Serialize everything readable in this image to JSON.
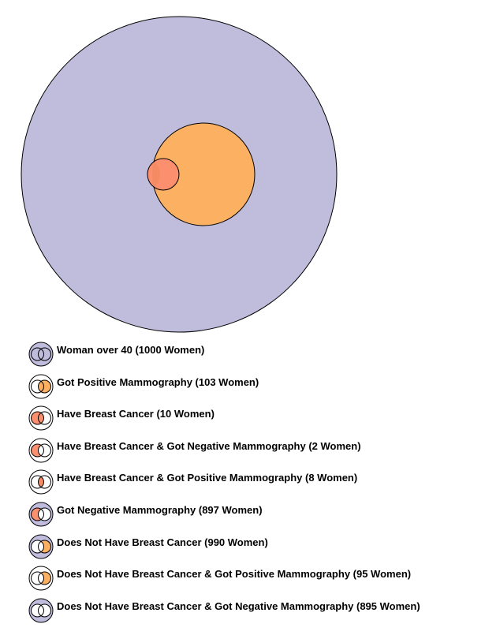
{
  "colors": {
    "women": "#bfbcdc",
    "positive": "#fcb162",
    "cancer": "#fb8f6e",
    "overlap_on_positive": "#f48b63",
    "stroke": "#000000"
  },
  "chart_data": {
    "type": "venn",
    "sets": [
      {
        "name": "Woman over 40",
        "count": 1000
      },
      {
        "name": "Got Positive Mammography",
        "count": 103
      },
      {
        "name": "Have Breast Cancer",
        "count": 10
      }
    ],
    "intersections": [
      {
        "sets": [
          "Have Breast Cancer",
          "Got Positive Mammography"
        ],
        "count": 8
      }
    ]
  },
  "legend": [
    {
      "label": "Woman over 40 (1000 Women)",
      "icon": "all-women",
      "fill": [
        "outer",
        "left",
        "right"
      ]
    },
    {
      "label": "Got Positive Mammography (103 Women)",
      "icon": "positive",
      "fill": [
        "right"
      ]
    },
    {
      "label": "Have Breast Cancer (10 Women)",
      "icon": "cancer",
      "fill": [
        "left"
      ]
    },
    {
      "label": "Have Breast Cancer & Got Negative Mammography (2 Women)",
      "icon": "cancer-negative",
      "fill": [
        "left-only"
      ]
    },
    {
      "label": "Have Breast Cancer & Got Positive Mammography (8 Women)",
      "icon": "cancer-positive",
      "fill": [
        "middle"
      ]
    },
    {
      "label": "Got Negative Mammography (897 Women)",
      "icon": "negative",
      "fill": [
        "outer",
        "left-only"
      ]
    },
    {
      "label": "Does Not Have Breast Cancer (990 Women)",
      "icon": "no-cancer",
      "fill": [
        "outer",
        "right-only"
      ]
    },
    {
      "label": "Does Not Have Breast Cancer & Got Positive Mammography (95 Women)",
      "icon": "no-cancer-positive",
      "fill": [
        "right-only"
      ]
    },
    {
      "label": "Does Not Have Breast Cancer & Got Negative Mammography (895 Women)",
      "icon": "no-cancer-negative",
      "fill": [
        "outer"
      ]
    }
  ]
}
